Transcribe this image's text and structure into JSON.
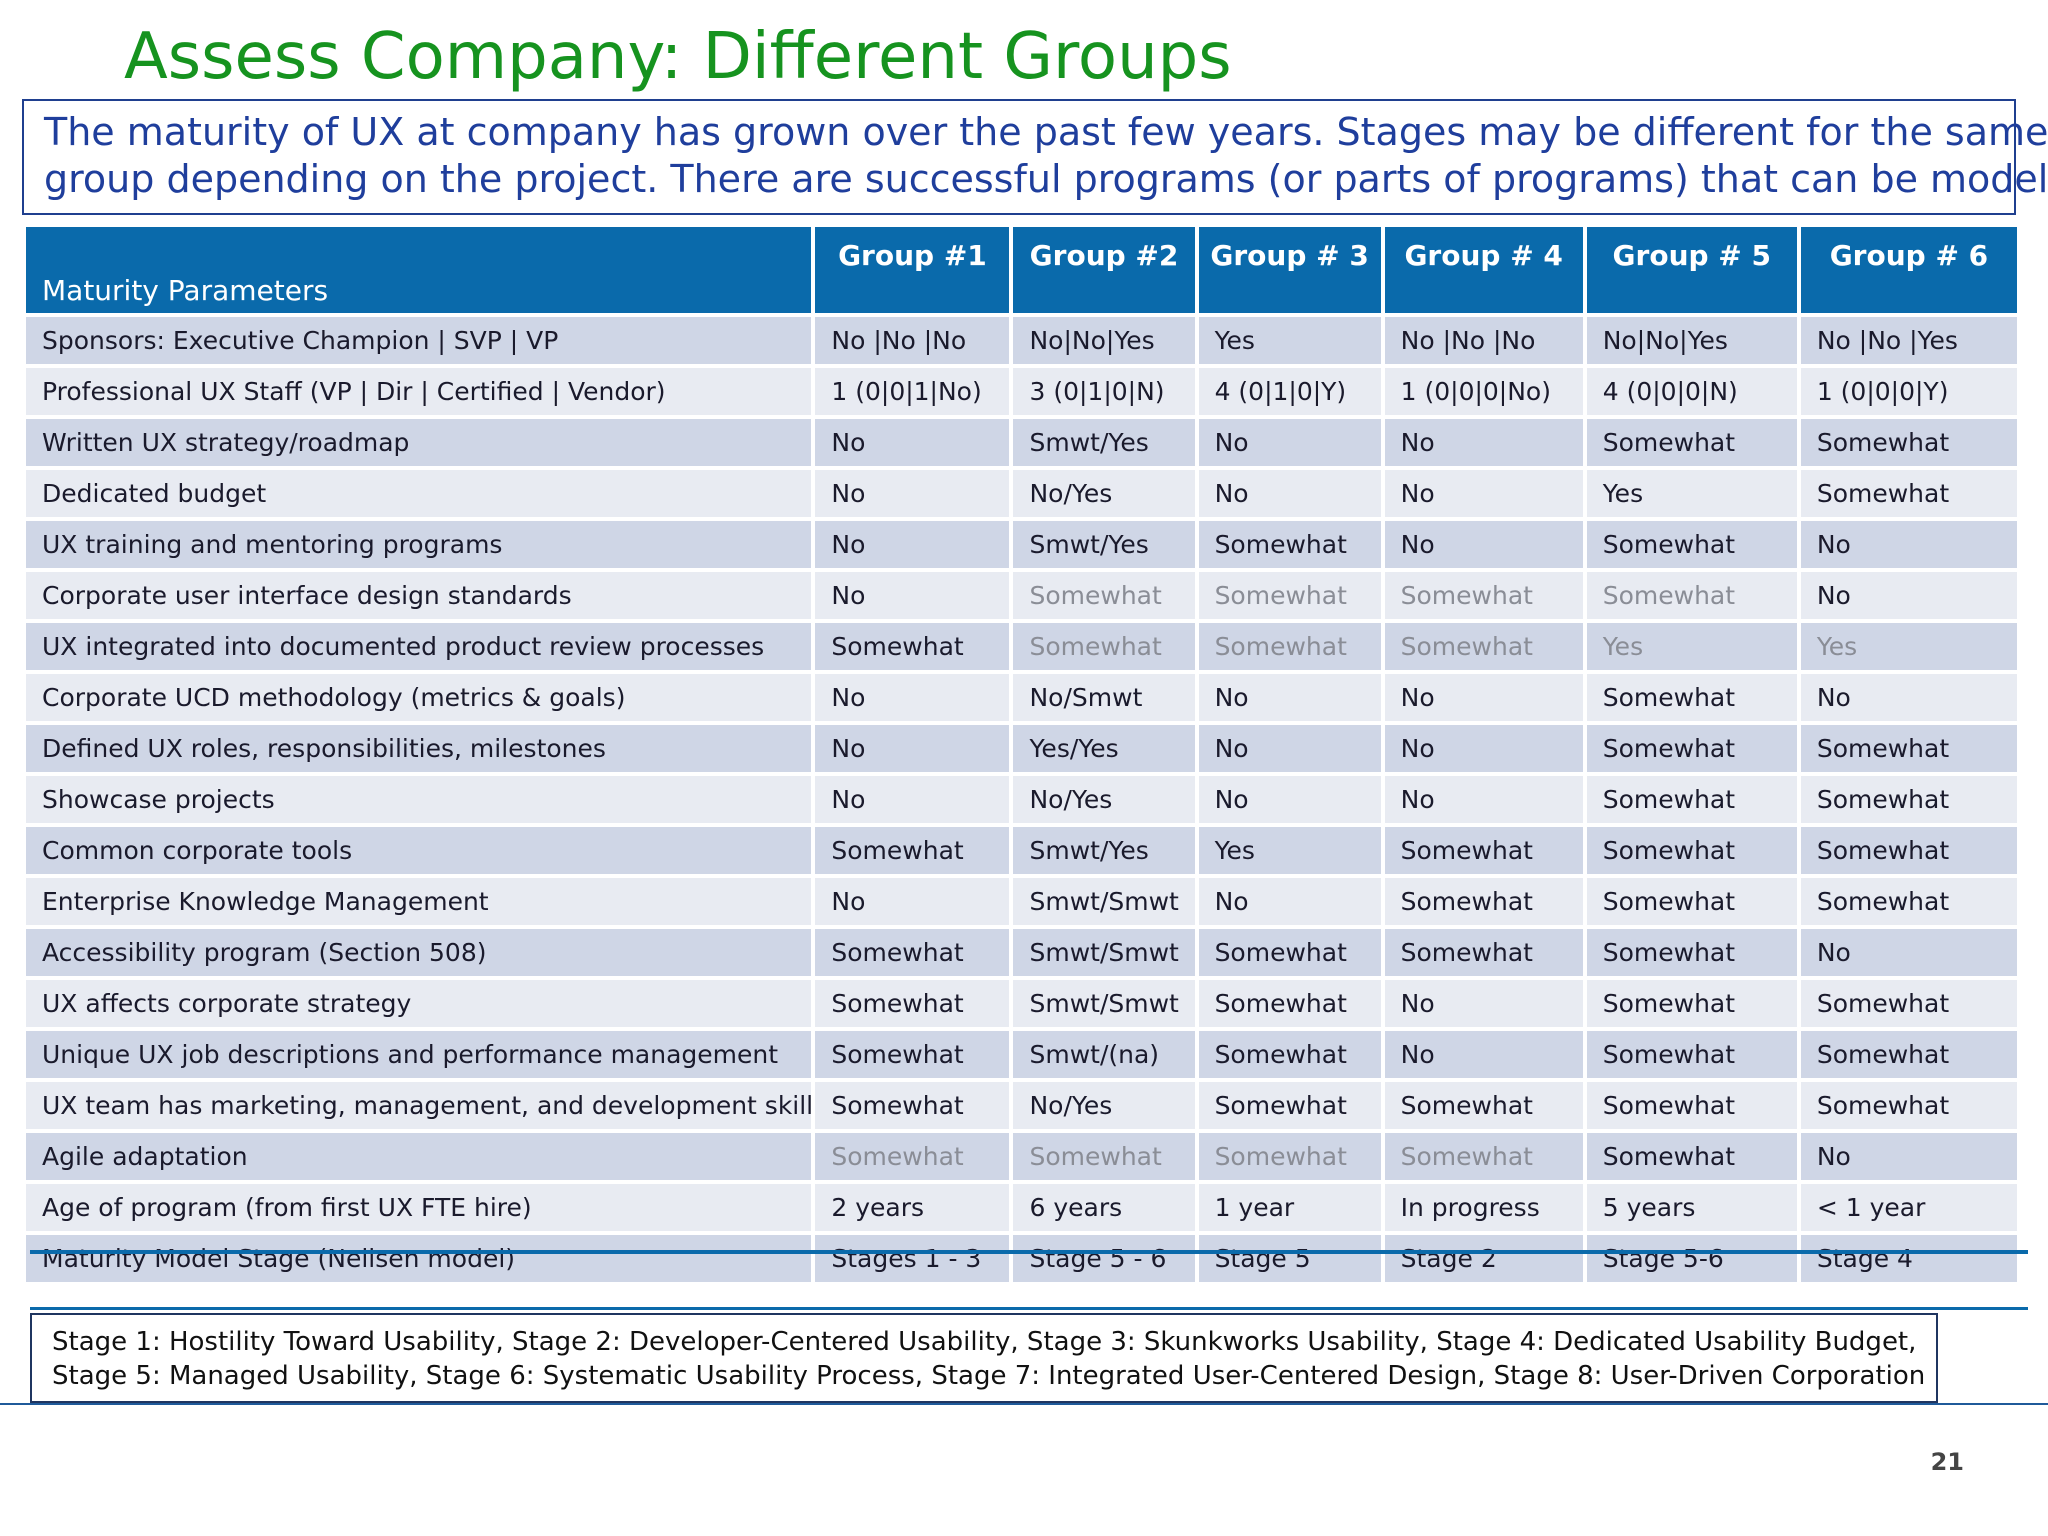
{
  "slide": {
    "title": "Assess Company: Different Groups",
    "intro_lines": [
      "The maturity of UX at company has grown over the past few years.  Stages may be different for the same",
      "group depending on the project.  There are successful programs (or parts of programs) that can be modeled."
    ],
    "page_number": "21"
  },
  "table": {
    "param_header": "Maturity Parameters",
    "groups": [
      "Group #1",
      "Group #2",
      "Group # 3",
      "Group # 4",
      "Group # 5",
      "Group # 6"
    ],
    "rows": [
      {
        "label": "Sponsors: Executive Champion | SVP | VP",
        "cells": [
          "No |No |No",
          "No|No|Yes",
          "Yes",
          "No |No |No",
          "No|No|Yes",
          "No |No |Yes"
        ]
      },
      {
        "label": "Professional UX Staff (VP | Dir | Certified | Vendor)",
        "cells": [
          "1 (0|0|1|No)",
          "3 (0|1|0|N)",
          "4 (0|1|0|Y)",
          "1 (0|0|0|No)",
          "4 (0|0|0|N)",
          "1 (0|0|0|Y)"
        ]
      },
      {
        "label": "Written UX strategy/roadmap",
        "cells": [
          "No",
          "Smwt/Yes",
          "No",
          "No",
          "Somewhat",
          "Somewhat"
        ]
      },
      {
        "label": "Dedicated budget",
        "cells": [
          "No",
          "No/Yes",
          "No",
          "No",
          "Yes",
          "Somewhat"
        ]
      },
      {
        "label": "UX training and mentoring programs",
        "cells": [
          "No",
          "Smwt/Yes",
          "Somewhat",
          "No",
          "Somewhat",
          "No"
        ]
      },
      {
        "label": "Corporate user interface design standards",
        "cells": [
          "No",
          "Somewhat",
          "Somewhat",
          "Somewhat",
          "Somewhat",
          "No"
        ]
      },
      {
        "label": "UX integrated into documented product review processes",
        "cells": [
          "Somewhat",
          "Somewhat",
          "Somewhat",
          "Somewhat",
          "Yes",
          "Yes"
        ]
      },
      {
        "label": "Corporate UCD methodology (metrics & goals)",
        "cells": [
          "No",
          "No/Smwt",
          "No",
          "No",
          "Somewhat",
          "No"
        ]
      },
      {
        "label": "Defined UX roles, responsibilities, milestones",
        "cells": [
          "No",
          "Yes/Yes",
          "No",
          "No",
          "Somewhat",
          "Somewhat"
        ]
      },
      {
        "label": "Showcase projects",
        "cells": [
          "No",
          "No/Yes",
          "No",
          "No",
          "Somewhat",
          "Somewhat"
        ]
      },
      {
        "label": "Common corporate tools",
        "cells": [
          "Somewhat",
          "Smwt/Yes",
          "Yes",
          "Somewhat",
          "Somewhat",
          "Somewhat"
        ]
      },
      {
        "label": "Enterprise Knowledge Management",
        "cells": [
          "No",
          "Smwt/Smwt",
          "No",
          "Somewhat",
          "Somewhat",
          "Somewhat"
        ]
      },
      {
        "label": "Accessibility program (Section 508)",
        "cells": [
          "Somewhat",
          "Smwt/Smwt",
          "Somewhat",
          "Somewhat",
          "Somewhat",
          "No"
        ]
      },
      {
        "label": "UX affects corporate strategy",
        "cells": [
          "Somewhat",
          "Smwt/Smwt",
          "Somewhat",
          "No",
          "Somewhat",
          "Somewhat"
        ]
      },
      {
        "label": "Unique UX job descriptions and performance management",
        "cells": [
          "Somewhat",
          "Smwt/(na)",
          "Somewhat",
          "No",
          "Somewhat",
          "Somewhat"
        ]
      },
      {
        "label": "UX team has marketing, management, and development skills",
        "cells": [
          "Somewhat",
          "No/Yes",
          "Somewhat",
          "Somewhat",
          "Somewhat",
          "Somewhat"
        ]
      },
      {
        "label": "Agile adaptation",
        "cells": [
          "Somewhat",
          "Somewhat",
          "Somewhat",
          "Somewhat",
          "Somewhat",
          "No"
        ]
      },
      {
        "label": "Age of program (from first UX FTE hire)",
        "cells": [
          "2 years",
          "6 years",
          "1 year",
          "In progress",
          "5 years",
          "< 1 year"
        ]
      },
      {
        "label": "Maturity Model Stage (Neilsen model)",
        "cells": [
          "Stages 1 - 3",
          "Stage 5 - 6",
          "Stage 5",
          "Stage 2",
          "Stage 5-6",
          "Stage 4"
        ]
      }
    ]
  },
  "legend_lines": [
    "Stage 1: Hostility Toward Usability, Stage 2: Developer-Centered Usability, Stage 3: Skunkworks Usability, Stage 4: Dedicated Usability Budget,",
    "Stage 5: Managed Usability, Stage 6: Systematic Usability Process, Stage 7: Integrated User-Centered Design, Stage 8: User-Driven Corporation"
  ]
}
